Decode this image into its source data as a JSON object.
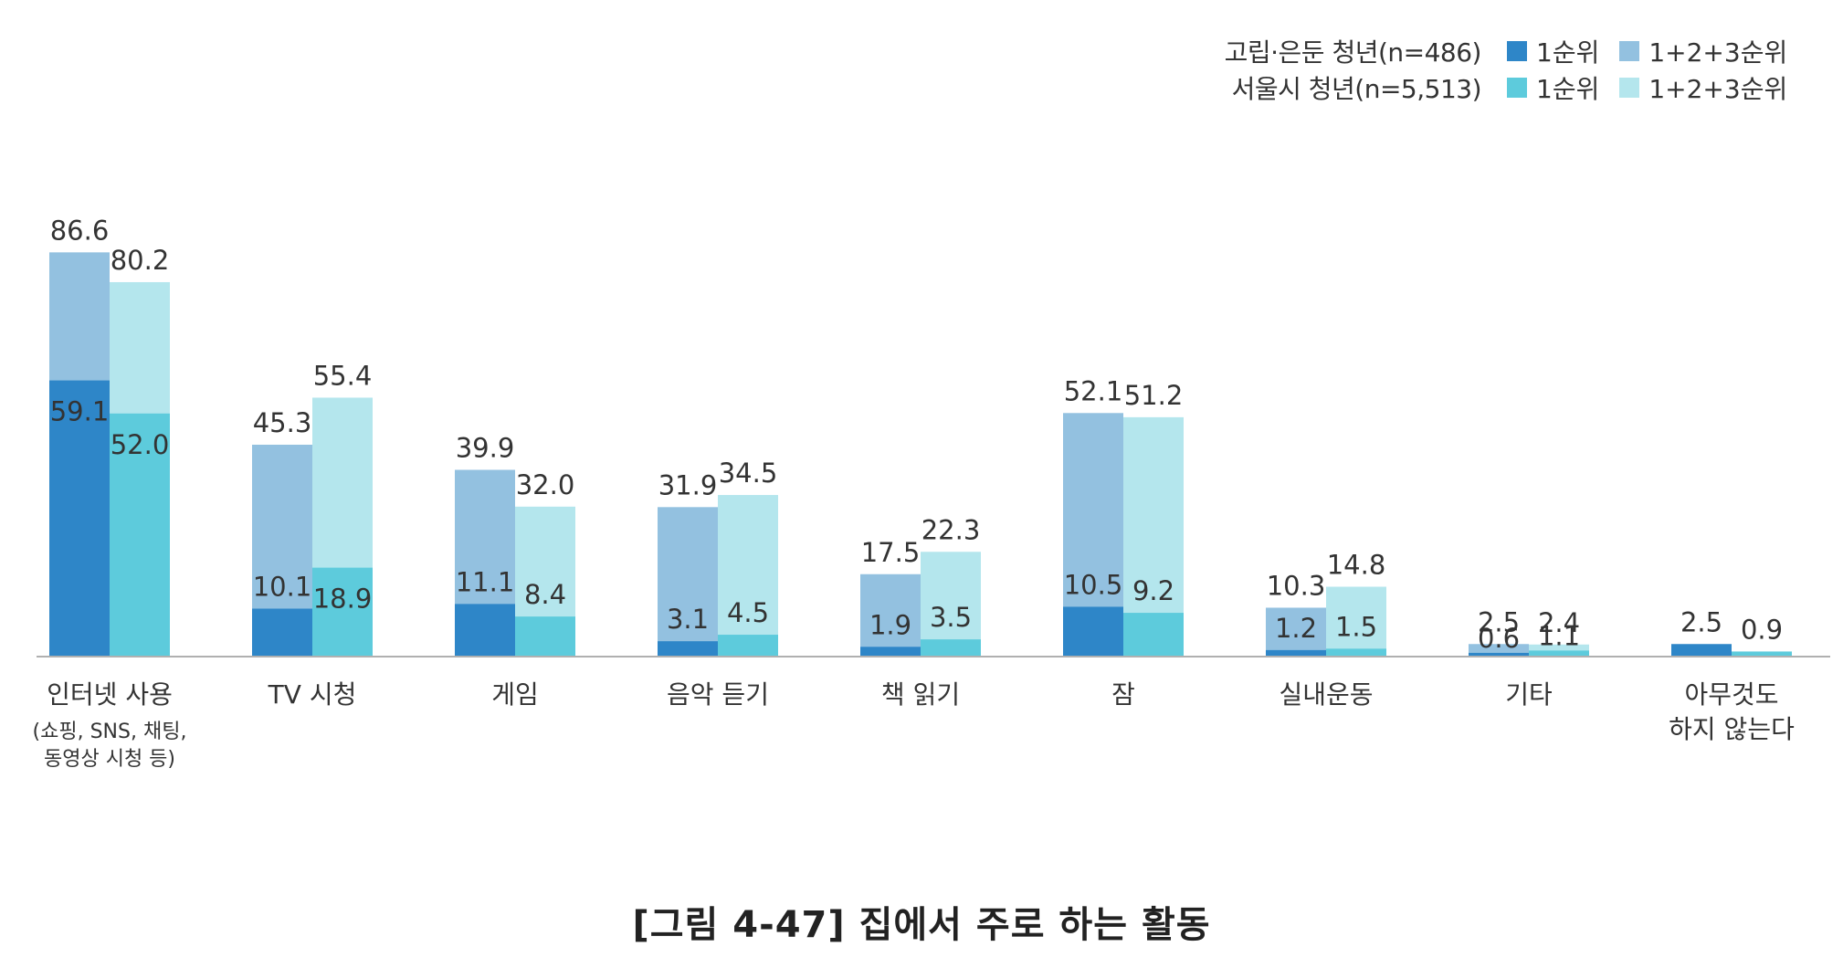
{
  "colors": {
    "isolated_first": "#2e86c8",
    "isolated_total": "#93c1e0",
    "seoul_first": "#5dcbdc",
    "seoul_total": "#b4e6ed",
    "axis": "#b0b0b0",
    "label": "#333333"
  },
  "legend": {
    "rows": [
      {
        "group": "고립·은둔 청년(n=486)",
        "first_label": "1순위",
        "total_label": "1+2+3순위"
      },
      {
        "group": "서울시 청년(n=5,513)",
        "first_label": "1순위",
        "total_label": "1+2+3순위"
      }
    ]
  },
  "chart_data": {
    "type": "bar",
    "stacking": "overlay",
    "ylim": [
      0,
      100
    ],
    "categories": [
      {
        "lines": [
          "인터넷 사용",
          "(쇼핑, SNS, 채팅,",
          "동영상 시청 등)"
        ]
      },
      {
        "lines": [
          "TV 시청"
        ]
      },
      {
        "lines": [
          "게임"
        ]
      },
      {
        "lines": [
          "음악 듣기"
        ]
      },
      {
        "lines": [
          "책 읽기"
        ]
      },
      {
        "lines": [
          "잠"
        ]
      },
      {
        "lines": [
          "실내운동"
        ]
      },
      {
        "lines": [
          "기타"
        ]
      },
      {
        "lines": [
          "아무것도",
          "하지 않는다"
        ]
      }
    ],
    "series": [
      {
        "name": "고립·은둔 청년(n=486)",
        "first_rank": [
          59.1,
          10.1,
          11.1,
          3.1,
          1.9,
          10.5,
          1.2,
          0.6,
          2.5
        ],
        "first_rank_labels": [
          "59.1",
          "10.1",
          "11.1",
          "3.1",
          "1.9",
          "10.5",
          "1.2",
          "0.6",
          ""
        ],
        "top3": [
          86.6,
          45.3,
          39.9,
          31.9,
          17.5,
          52.1,
          10.3,
          2.5,
          null
        ],
        "top3_labels": [
          "86.6",
          "45.3",
          "39.9",
          "31.9",
          "17.5",
          "52.1",
          "10.3",
          "2.5",
          "2.5"
        ]
      },
      {
        "name": "서울시 청년(n=5,513)",
        "first_rank": [
          52.0,
          18.9,
          8.4,
          4.5,
          3.5,
          9.2,
          1.5,
          1.1,
          0.9
        ],
        "first_rank_labels": [
          "52.0",
          "18.9",
          "8.4",
          "4.5",
          "3.5",
          "9.2",
          "1.5",
          "1.1",
          ""
        ],
        "top3": [
          80.2,
          55.4,
          32.0,
          34.5,
          22.3,
          51.2,
          14.8,
          2.4,
          null
        ],
        "top3_labels": [
          "80.2",
          "55.4",
          "32.0",
          "34.5",
          "22.3",
          "51.2",
          "14.8",
          "2.4",
          "0.9"
        ]
      }
    ]
  },
  "caption": "[그림 4-47] 집에서 주로 하는 활동"
}
